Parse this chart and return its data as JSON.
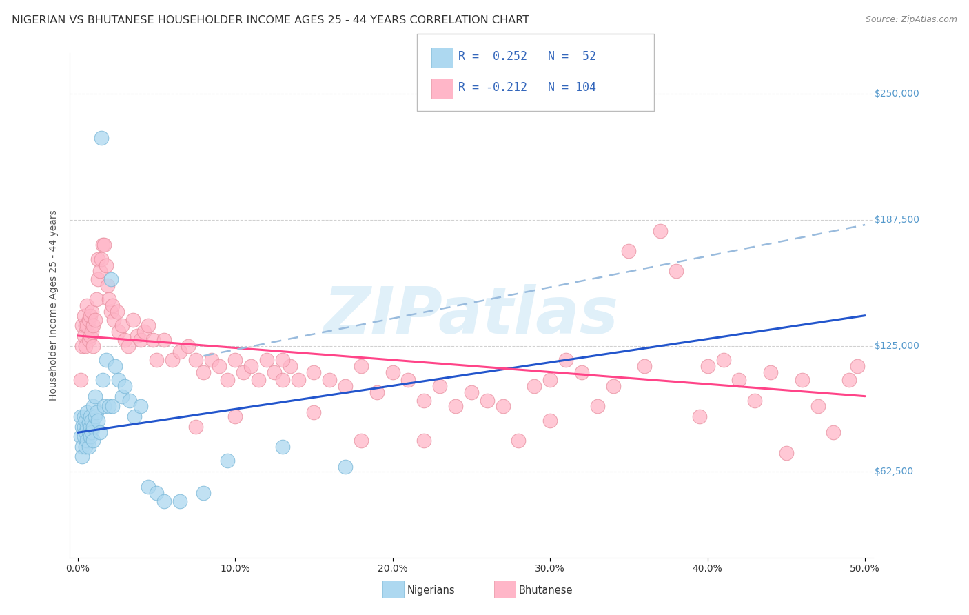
{
  "title": "NIGERIAN VS BHUTANESE HOUSEHOLDER INCOME AGES 25 - 44 YEARS CORRELATION CHART",
  "source": "Source: ZipAtlas.com",
  "ylabel": "Householder Income Ages 25 - 44 years",
  "R_nigerian": 0.252,
  "N_nigerian": 52,
  "R_bhutanese": -0.212,
  "N_bhutanese": 104,
  "nigerian_color": "#ADD8F0",
  "nigerian_edge_color": "#7AB8D8",
  "bhutanese_color": "#FFB6C8",
  "bhutanese_edge_color": "#E890A0",
  "nigerian_line_color": "#2255CC",
  "bhutanese_line_color": "#FF4488",
  "dashed_line_color": "#99BBDD",
  "watermark_color": "#D0E8F5",
  "background_color": "#FFFFFF",
  "grid_color": "#CCCCCC",
  "ytick_color": "#5599CC",
  "title_fontsize": 11.5,
  "axis_label_fontsize": 10,
  "tick_fontsize": 10,
  "legend_fontsize": 12,
  "xlim": [
    -0.005,
    0.505
  ],
  "ylim": [
    20000,
    270000
  ],
  "nigerian_x": [
    0.002,
    0.002,
    0.003,
    0.003,
    0.003,
    0.004,
    0.004,
    0.004,
    0.005,
    0.005,
    0.005,
    0.006,
    0.006,
    0.006,
    0.007,
    0.007,
    0.007,
    0.008,
    0.008,
    0.008,
    0.009,
    0.009,
    0.01,
    0.01,
    0.01,
    0.011,
    0.011,
    0.012,
    0.013,
    0.014,
    0.015,
    0.016,
    0.017,
    0.018,
    0.02,
    0.021,
    0.022,
    0.024,
    0.026,
    0.028,
    0.03,
    0.033,
    0.036,
    0.04,
    0.045,
    0.05,
    0.055,
    0.065,
    0.08,
    0.095,
    0.13,
    0.17
  ],
  "nigerian_y": [
    90000,
    80000,
    85000,
    75000,
    70000,
    85000,
    80000,
    90000,
    88000,
    82000,
    75000,
    92000,
    85000,
    78000,
    87000,
    82000,
    75000,
    90000,
    85000,
    80000,
    88000,
    82000,
    95000,
    85000,
    78000,
    100000,
    90000,
    92000,
    88000,
    82000,
    228000,
    108000,
    95000,
    118000,
    95000,
    158000,
    95000,
    115000,
    108000,
    100000,
    105000,
    98000,
    90000,
    95000,
    55000,
    52000,
    48000,
    48000,
    52000,
    68000,
    75000,
    65000
  ],
  "bhutanese_x": [
    0.002,
    0.003,
    0.003,
    0.004,
    0.004,
    0.005,
    0.005,
    0.006,
    0.006,
    0.007,
    0.007,
    0.008,
    0.008,
    0.009,
    0.009,
    0.01,
    0.01,
    0.011,
    0.012,
    0.013,
    0.013,
    0.014,
    0.015,
    0.016,
    0.017,
    0.018,
    0.019,
    0.02,
    0.021,
    0.022,
    0.023,
    0.025,
    0.026,
    0.028,
    0.03,
    0.032,
    0.035,
    0.038,
    0.04,
    0.042,
    0.045,
    0.048,
    0.05,
    0.055,
    0.06,
    0.065,
    0.07,
    0.075,
    0.08,
    0.085,
    0.09,
    0.095,
    0.1,
    0.105,
    0.11,
    0.115,
    0.12,
    0.125,
    0.13,
    0.135,
    0.14,
    0.15,
    0.16,
    0.17,
    0.18,
    0.19,
    0.2,
    0.21,
    0.22,
    0.23,
    0.24,
    0.25,
    0.26,
    0.27,
    0.28,
    0.29,
    0.3,
    0.31,
    0.32,
    0.33,
    0.34,
    0.35,
    0.36,
    0.37,
    0.38,
    0.395,
    0.4,
    0.41,
    0.42,
    0.43,
    0.44,
    0.45,
    0.46,
    0.47,
    0.48,
    0.49,
    0.495,
    0.3,
    0.22,
    0.18,
    0.15,
    0.13,
    0.1,
    0.075
  ],
  "bhutanese_y": [
    108000,
    135000,
    125000,
    140000,
    130000,
    135000,
    125000,
    145000,
    135000,
    138000,
    128000,
    140000,
    130000,
    142000,
    132000,
    135000,
    125000,
    138000,
    148000,
    168000,
    158000,
    162000,
    168000,
    175000,
    175000,
    165000,
    155000,
    148000,
    142000,
    145000,
    138000,
    142000,
    132000,
    135000,
    128000,
    125000,
    138000,
    130000,
    128000,
    132000,
    135000,
    128000,
    118000,
    128000,
    118000,
    122000,
    125000,
    118000,
    112000,
    118000,
    115000,
    108000,
    118000,
    112000,
    115000,
    108000,
    118000,
    112000,
    108000,
    115000,
    108000,
    112000,
    108000,
    105000,
    115000,
    102000,
    112000,
    108000,
    98000,
    105000,
    95000,
    102000,
    98000,
    95000,
    78000,
    105000,
    108000,
    118000,
    112000,
    95000,
    105000,
    172000,
    115000,
    182000,
    162000,
    90000,
    115000,
    118000,
    108000,
    98000,
    112000,
    72000,
    108000,
    95000,
    82000,
    108000,
    115000,
    88000,
    78000,
    78000,
    92000,
    118000,
    90000,
    85000
  ],
  "nigerian_trend_x0": 0.0,
  "nigerian_trend_x1": 0.5,
  "nigerian_trend_y0": 82000,
  "nigerian_trend_y1": 140000,
  "bhutanese_trend_x0": 0.0,
  "bhutanese_trend_x1": 0.5,
  "bhutanese_trend_y0": 130000,
  "bhutanese_trend_y1": 100000,
  "dashed_trend_x0": 0.08,
  "dashed_trend_x1": 0.5,
  "dashed_trend_y0": 120000,
  "dashed_trend_y1": 185000
}
